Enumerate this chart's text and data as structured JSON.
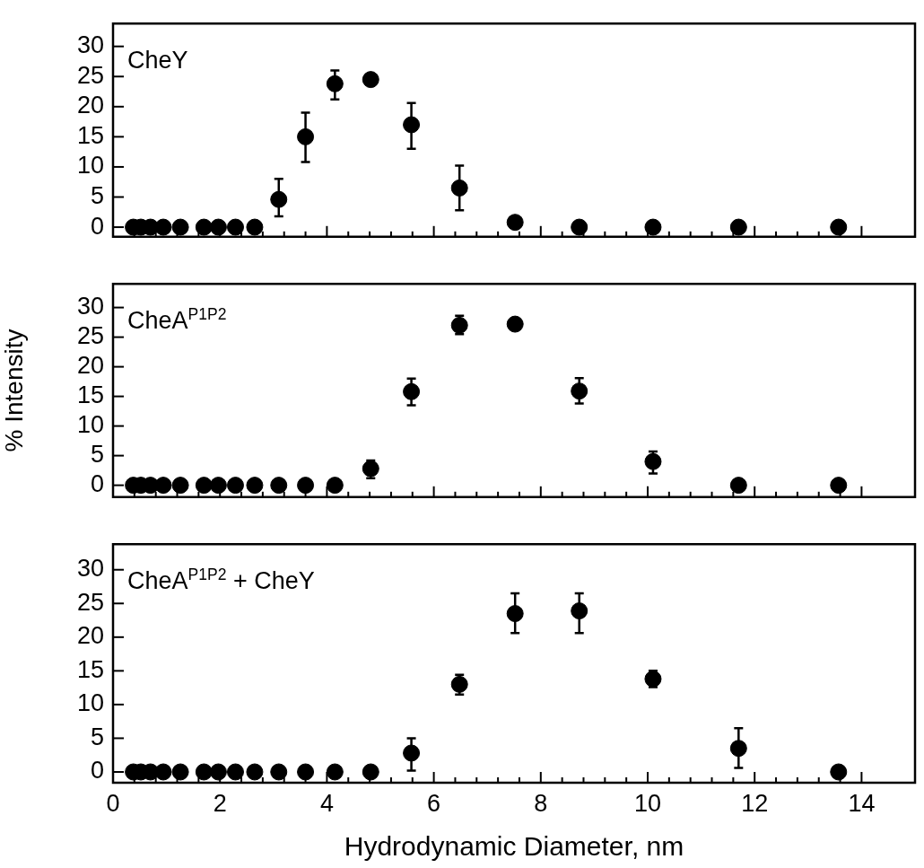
{
  "chart_data": [
    {
      "type": "scatter",
      "annotations": [
        "CheY"
      ],
      "x": [
        0.38,
        0.52,
        0.7,
        0.94,
        1.26,
        1.7,
        1.97,
        2.29,
        2.65,
        3.1,
        3.6,
        4.15,
        4.82,
        5.58,
        6.48,
        7.52,
        8.72,
        10.1,
        11.7,
        13.57
      ],
      "series": [
        {
          "color": "#000000",
          "values": [
            0,
            0,
            0,
            0,
            0,
            0,
            0,
            0,
            0,
            4.6,
            15.0,
            23.8,
            24.5,
            17.0,
            6.5,
            0.8,
            0,
            0,
            0,
            0
          ],
          "errors": [
            null,
            null,
            null,
            null,
            null,
            null,
            null,
            null,
            null,
            [
              1.8,
              8.0
            ],
            [
              10.8,
              19.0
            ],
            [
              21.2,
              26.0
            ],
            null,
            [
              13.0,
              20.6
            ],
            [
              2.8,
              10.2
            ],
            null,
            null,
            null,
            null,
            null
          ]
        }
      ],
      "xlim": [
        0,
        15
      ],
      "xticks": [
        0,
        2,
        4,
        6,
        8,
        10,
        12,
        14
      ],
      "ylim": [
        -1.6,
        33.8
      ],
      "yticks": [
        0,
        5,
        10,
        15,
        20,
        25,
        30
      ],
      "tick_labels": "y",
      "grid": false,
      "legend": false,
      "marker": "circle"
    },
    {
      "type": "scatter",
      "ylabel": "% Intensity",
      "annotations": [
        "CheA$^{P1P2}$"
      ],
      "x": [
        0.38,
        0.52,
        0.7,
        0.94,
        1.26,
        1.7,
        1.97,
        2.29,
        2.65,
        3.1,
        3.6,
        4.15,
        4.82,
        5.58,
        6.48,
        7.52,
        8.72,
        10.1,
        11.7,
        13.57
      ],
      "series": [
        {
          "color": "#000000",
          "values": [
            0,
            0,
            0,
            0,
            0,
            0,
            0,
            0,
            0,
            0,
            0,
            0,
            2.8,
            15.8,
            27.0,
            27.2,
            15.9,
            4.0,
            0,
            0
          ],
          "errors": [
            null,
            null,
            null,
            null,
            null,
            null,
            null,
            null,
            null,
            null,
            null,
            null,
            [
              1.2,
              4.2
            ],
            [
              13.5,
              18.0
            ],
            [
              25.5,
              28.6
            ],
            null,
            [
              13.8,
              18.1
            ],
            [
              2.0,
              5.7
            ],
            null,
            null
          ]
        }
      ],
      "xlim": [
        0,
        15
      ],
      "xticks": [
        0,
        2,
        4,
        6,
        8,
        10,
        12,
        14
      ],
      "ylim": [
        -2,
        34
      ],
      "yticks": [
        0,
        5,
        10,
        15,
        20,
        25,
        30
      ],
      "tick_labels": "y",
      "grid": false,
      "legend": false,
      "marker": "circle"
    },
    {
      "type": "scatter",
      "xlabel": "Hydrodynamic Diameter, nm",
      "annotations": [
        "CheA$^{P1P2}$ + CheY"
      ],
      "x": [
        0.38,
        0.52,
        0.7,
        0.94,
        1.26,
        1.7,
        1.97,
        2.29,
        2.65,
        3.1,
        3.6,
        4.15,
        4.82,
        5.58,
        6.48,
        7.52,
        8.72,
        10.1,
        11.7,
        13.57
      ],
      "series": [
        {
          "color": "#000000",
          "values": [
            0,
            0,
            0,
            0,
            0,
            0,
            0,
            0,
            0,
            0,
            0,
            0,
            0,
            2.8,
            13.0,
            23.5,
            23.9,
            13.8,
            3.5,
            0
          ],
          "errors": [
            null,
            null,
            null,
            null,
            null,
            null,
            null,
            null,
            null,
            null,
            null,
            null,
            null,
            [
              0.2,
              5.0
            ],
            [
              11.5,
              14.4
            ],
            [
              20.6,
              26.5
            ],
            [
              20.6,
              26.5
            ],
            [
              12.6,
              15.0
            ],
            [
              0.6,
              6.5
            ],
            null
          ]
        }
      ],
      "xlim": [
        0,
        15
      ],
      "xticks": [
        0,
        2,
        4,
        6,
        8,
        10,
        12,
        14
      ],
      "ylim": [
        -1.6,
        33.8
      ],
      "yticks": [
        0,
        5,
        10,
        15,
        20,
        25,
        30
      ],
      "grid": false,
      "legend": false,
      "marker": "circle"
    }
  ]
}
